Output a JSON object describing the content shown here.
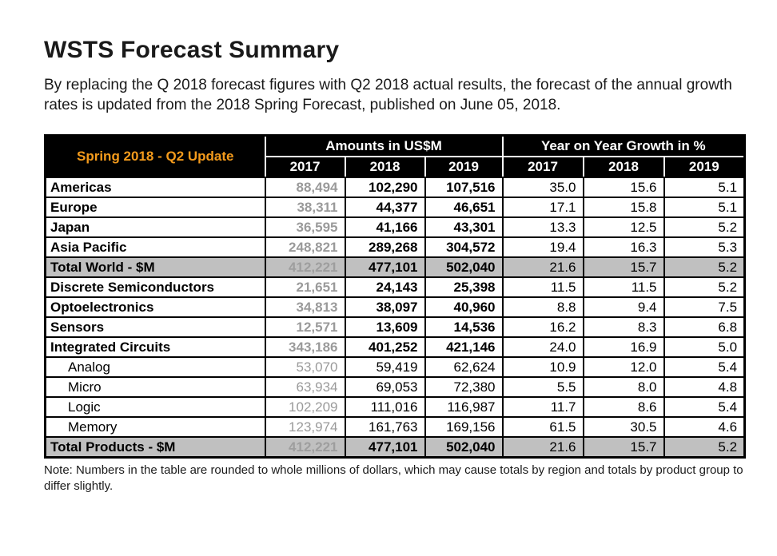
{
  "page": {
    "title": "WSTS Forecast Summary",
    "intro": "By replacing the Q 2018 forecast figures with Q2 2018 actual results, the forecast of the annual growth rates is updated from the 2018 Spring Forecast, published on June 05, 2018.",
    "note": "Note: Numbers in the table are rounded to whole millions of dollars, which may cause totals by region and totals by product group to differ slightly."
  },
  "colors": {
    "accent_orange": "#F49B1C",
    "header_bg": "#000000",
    "total_row_bg": "#C0C0C0",
    "muted_2017_value": "#9A9A9A"
  },
  "table": {
    "corner_label": "Spring 2018 - Q2 Update",
    "group_headers": {
      "amounts": "Amounts in US$M",
      "growth": "Year on Year Growth in %"
    },
    "year_headers": [
      "2017",
      "2018",
      "2019",
      "2017",
      "2018",
      "2019"
    ],
    "rows": [
      {
        "label": "Americas",
        "style": "region",
        "amounts": [
          "88,494",
          "102,290",
          "107,516"
        ],
        "growth": [
          "35.0",
          "15.6",
          "5.1"
        ]
      },
      {
        "label": "Europe",
        "style": "region",
        "amounts": [
          "38,311",
          "44,377",
          "46,651"
        ],
        "growth": [
          "17.1",
          "15.8",
          "5.1"
        ]
      },
      {
        "label": "Japan",
        "style": "region",
        "amounts": [
          "36,595",
          "41,166",
          "43,301"
        ],
        "growth": [
          "13.3",
          "12.5",
          "5.2"
        ]
      },
      {
        "label": "Asia Pacific",
        "style": "region",
        "amounts": [
          "248,821",
          "289,268",
          "304,572"
        ],
        "growth": [
          "19.4",
          "16.3",
          "5.3"
        ]
      },
      {
        "label": "Total World - $M",
        "style": "total",
        "amounts": [
          "412,221",
          "477,101",
          "502,040"
        ],
        "growth": [
          "21.6",
          "15.7",
          "5.2"
        ]
      },
      {
        "label": "Discrete Semiconductors",
        "style": "product",
        "amounts": [
          "21,651",
          "24,143",
          "25,398"
        ],
        "growth": [
          "11.5",
          "11.5",
          "5.2"
        ]
      },
      {
        "label": "Optoelectronics",
        "style": "product",
        "amounts": [
          "34,813",
          "38,097",
          "40,960"
        ],
        "growth": [
          "8.8",
          "9.4",
          "7.5"
        ]
      },
      {
        "label": "Sensors",
        "style": "product",
        "amounts": [
          "12,571",
          "13,609",
          "14,536"
        ],
        "growth": [
          "16.2",
          "8.3",
          "6.8"
        ]
      },
      {
        "label": "Integrated Circuits",
        "style": "product",
        "amounts": [
          "343,186",
          "401,252",
          "421,146"
        ],
        "growth": [
          "24.0",
          "16.9",
          "5.0"
        ]
      },
      {
        "label": "Analog",
        "style": "sub",
        "amounts": [
          "53,070",
          "59,419",
          "62,624"
        ],
        "growth": [
          "10.9",
          "12.0",
          "5.4"
        ]
      },
      {
        "label": "Micro",
        "style": "sub",
        "amounts": [
          "63,934",
          "69,053",
          "72,380"
        ],
        "growth": [
          "5.5",
          "8.0",
          "4.8"
        ]
      },
      {
        "label": "Logic",
        "style": "sub",
        "amounts": [
          "102,209",
          "111,016",
          "116,987"
        ],
        "growth": [
          "11.7",
          "8.6",
          "5.4"
        ]
      },
      {
        "label": "Memory",
        "style": "sub",
        "amounts": [
          "123,974",
          "161,763",
          "169,156"
        ],
        "growth": [
          "61.5",
          "30.5",
          "4.6"
        ]
      },
      {
        "label": "Total Products - $M",
        "style": "total",
        "amounts": [
          "412,221",
          "477,101",
          "502,040"
        ],
        "growth": [
          "21.6",
          "15.7",
          "5.2"
        ]
      }
    ]
  }
}
